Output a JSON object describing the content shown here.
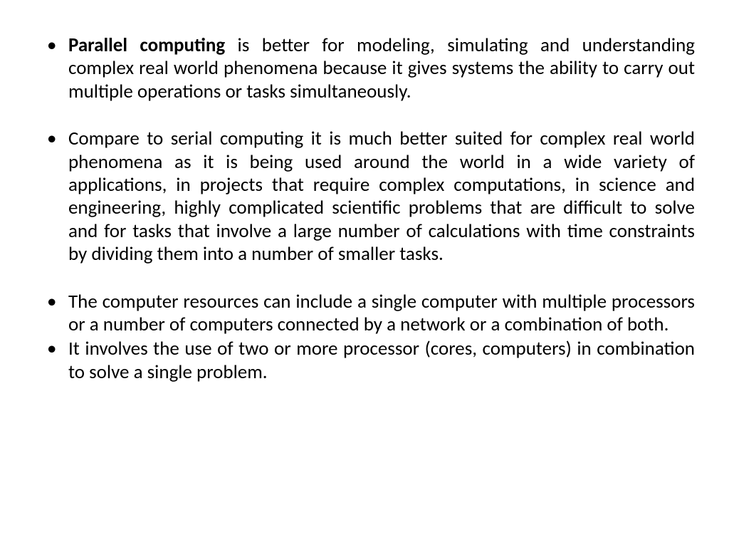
{
  "slide": {
    "background_color": "#ffffff",
    "text_color": "#000000",
    "font_family": "Calibri, Arial, sans-serif",
    "font_size_pt": 20,
    "text_align": "justify",
    "bullets": [
      {
        "bold_lead": "Parallel computing",
        "rest": " is better for modeling, simulating and understanding complex real world phenomena because it gives systems the ability to carry out multiple operations or tasks simultaneously.",
        "spacing_after": "normal"
      },
      {
        "bold_lead": "",
        "rest": "Compare to serial computing it is much better suited for complex real world phenomena as it is being used around the world in a wide variety of applications, in projects that require complex computations, in science and engineering, highly complicated scientific problems that are difficult to solve and for tasks that involve a large number of calculations with time constraints by dividing them into a number of smaller tasks.",
        "spacing_after": "normal"
      },
      {
        "bold_lead": "",
        "rest": "The computer resources can include a single computer with multiple processors or a number of computers connected by a network or a combination of both.",
        "spacing_after": "tight"
      },
      {
        "bold_lead": "",
        "rest": "It involves the use of two or more processor (cores, computers) in combination to solve a single problem.",
        "spacing_after": "normal"
      }
    ]
  }
}
